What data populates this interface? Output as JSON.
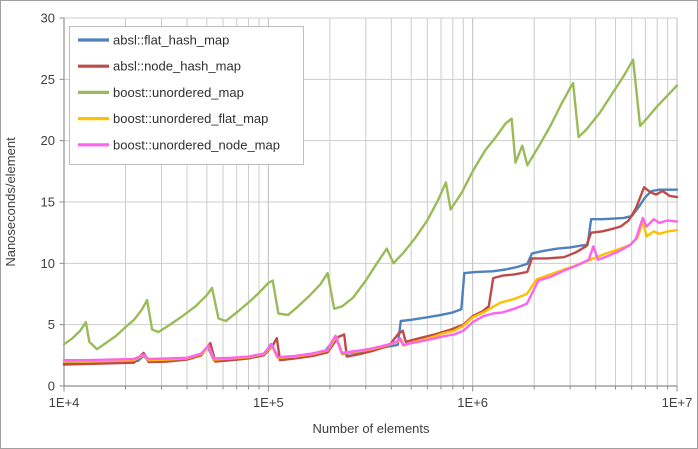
{
  "window": {
    "background": "#ffffff",
    "border_color": "#9f9f9f"
  },
  "chart_data": {
    "type": "line",
    "title": "",
    "x_axis": {
      "label": "Number of elements",
      "scale": "log",
      "min": 10000,
      "max": 10000000,
      "tick_labels": [
        "1E+4",
        "1E+5",
        "1E+6",
        "1E+7"
      ],
      "minor_gridlines": true
    },
    "y_axis": {
      "label": "Nanoseconds/element",
      "min": 0,
      "max": 30,
      "tick_step": 5,
      "tick_labels": [
        "0",
        "5",
        "10",
        "15",
        "20",
        "25",
        "30"
      ]
    },
    "grid": {
      "minor_color": "#cdcdcd",
      "major_color": "#bdbdbd",
      "axis_color": "#8f8f8f"
    },
    "legend": {
      "position": "top-left",
      "border_color": "#bdbdbd",
      "fill": "#ffffff"
    },
    "series": [
      {
        "name": "absl::flat_hash_map",
        "color": "#4F81BD",
        "points": [
          [
            10000,
            1.9
          ],
          [
            12000,
            1.9
          ],
          [
            15000,
            1.95
          ],
          [
            19000,
            2.0
          ],
          [
            23000,
            2.05
          ],
          [
            24500,
            2.45
          ],
          [
            26000,
            2.05
          ],
          [
            31000,
            2.1
          ],
          [
            38000,
            2.2
          ],
          [
            46000,
            2.45
          ],
          [
            50500,
            3.2
          ],
          [
            54000,
            2.1
          ],
          [
            65000,
            2.2
          ],
          [
            80000,
            2.35
          ],
          [
            95000,
            2.55
          ],
          [
            103000,
            3.4
          ],
          [
            112000,
            2.3
          ],
          [
            130000,
            2.4
          ],
          [
            160000,
            2.6
          ],
          [
            190000,
            2.85
          ],
          [
            215000,
            4.0
          ],
          [
            230000,
            2.6
          ],
          [
            270000,
            2.75
          ],
          [
            320000,
            2.95
          ],
          [
            380000,
            3.2
          ],
          [
            430000,
            3.35
          ],
          [
            445000,
            5.3
          ],
          [
            500000,
            5.4
          ],
          [
            600000,
            5.6
          ],
          [
            700000,
            5.8
          ],
          [
            800000,
            6.0
          ],
          [
            880000,
            6.25
          ],
          [
            910000,
            9.2
          ],
          [
            1050000,
            9.3
          ],
          [
            1250000,
            9.35
          ],
          [
            1450000,
            9.5
          ],
          [
            1650000,
            9.7
          ],
          [
            1850000,
            9.95
          ],
          [
            1950000,
            10.8
          ],
          [
            2200000,
            11.0
          ],
          [
            2600000,
            11.2
          ],
          [
            3000000,
            11.3
          ],
          [
            3400000,
            11.45
          ],
          [
            3650000,
            11.5
          ],
          [
            3800000,
            13.6
          ],
          [
            4300000,
            13.6
          ],
          [
            4900000,
            13.65
          ],
          [
            5500000,
            13.7
          ],
          [
            6000000,
            13.85
          ],
          [
            6500000,
            14.6
          ],
          [
            7000000,
            15.4
          ],
          [
            7500000,
            15.9
          ],
          [
            8200000,
            16.0
          ],
          [
            9000000,
            16.0
          ],
          [
            10000000,
            16.0
          ]
        ]
      },
      {
        "name": "absl::node_hash_map",
        "color": "#BE4B48",
        "points": [
          [
            10000,
            1.75
          ],
          [
            13000,
            1.8
          ],
          [
            17000,
            1.85
          ],
          [
            22000,
            1.9
          ],
          [
            24500,
            2.7
          ],
          [
            26000,
            1.95
          ],
          [
            32000,
            2.0
          ],
          [
            40000,
            2.15
          ],
          [
            47000,
            2.5
          ],
          [
            52000,
            3.5
          ],
          [
            55000,
            2.0
          ],
          [
            66000,
            2.1
          ],
          [
            80000,
            2.25
          ],
          [
            95000,
            2.5
          ],
          [
            105000,
            3.3
          ],
          [
            110000,
            3.9
          ],
          [
            114000,
            2.1
          ],
          [
            135000,
            2.25
          ],
          [
            165000,
            2.45
          ],
          [
            195000,
            2.75
          ],
          [
            220000,
            4.0
          ],
          [
            235000,
            4.2
          ],
          [
            242000,
            2.4
          ],
          [
            280000,
            2.6
          ],
          [
            330000,
            2.9
          ],
          [
            390000,
            3.3
          ],
          [
            435000,
            4.3
          ],
          [
            455000,
            4.5
          ],
          [
            470000,
            3.6
          ],
          [
            550000,
            3.9
          ],
          [
            650000,
            4.2
          ],
          [
            780000,
            4.6
          ],
          [
            900000,
            5.0
          ],
          [
            1000000,
            5.7
          ],
          [
            1120000,
            6.1
          ],
          [
            1200000,
            6.5
          ],
          [
            1260000,
            8.8
          ],
          [
            1400000,
            9.0
          ],
          [
            1600000,
            9.1
          ],
          [
            1850000,
            9.3
          ],
          [
            1950000,
            10.4
          ],
          [
            2300000,
            10.4
          ],
          [
            2800000,
            10.5
          ],
          [
            3200000,
            10.9
          ],
          [
            3600000,
            11.4
          ],
          [
            3800000,
            12.5
          ],
          [
            4300000,
            12.6
          ],
          [
            4800000,
            12.8
          ],
          [
            5300000,
            13.0
          ],
          [
            5800000,
            13.5
          ],
          [
            6300000,
            14.5
          ],
          [
            6900000,
            16.2
          ],
          [
            7400000,
            15.8
          ],
          [
            7900000,
            15.6
          ],
          [
            8500000,
            15.9
          ],
          [
            9200000,
            15.5
          ],
          [
            10000000,
            15.4
          ]
        ]
      },
      {
        "name": "boost::unordered_map",
        "color": "#9BBB59",
        "points": [
          [
            10000,
            3.4
          ],
          [
            11000,
            3.9
          ],
          [
            12000,
            4.5
          ],
          [
            12800,
            5.2
          ],
          [
            13300,
            3.6
          ],
          [
            14500,
            3.0
          ],
          [
            16000,
            3.5
          ],
          [
            18000,
            4.1
          ],
          [
            20000,
            4.8
          ],
          [
            22000,
            5.4
          ],
          [
            24000,
            6.2
          ],
          [
            25500,
            7.0
          ],
          [
            27000,
            4.6
          ],
          [
            29000,
            4.4
          ],
          [
            33000,
            5.0
          ],
          [
            38000,
            5.7
          ],
          [
            44000,
            6.5
          ],
          [
            50000,
            7.4
          ],
          [
            53000,
            8.0
          ],
          [
            57000,
            5.5
          ],
          [
            62000,
            5.3
          ],
          [
            70000,
            6.0
          ],
          [
            80000,
            6.8
          ],
          [
            90000,
            7.6
          ],
          [
            100000,
            8.4
          ],
          [
            105000,
            8.6
          ],
          [
            112000,
            5.9
          ],
          [
            125000,
            5.8
          ],
          [
            140000,
            6.5
          ],
          [
            160000,
            7.4
          ],
          [
            180000,
            8.3
          ],
          [
            195000,
            9.2
          ],
          [
            210000,
            6.3
          ],
          [
            230000,
            6.5
          ],
          [
            260000,
            7.2
          ],
          [
            300000,
            8.6
          ],
          [
            340000,
            10.0
          ],
          [
            380000,
            11.2
          ],
          [
            410000,
            10.0
          ],
          [
            460000,
            10.9
          ],
          [
            520000,
            12.0
          ],
          [
            600000,
            13.5
          ],
          [
            680000,
            15.2
          ],
          [
            740000,
            16.6
          ],
          [
            780000,
            14.4
          ],
          [
            880000,
            15.7
          ],
          [
            1000000,
            17.5
          ],
          [
            1150000,
            19.2
          ],
          [
            1300000,
            20.3
          ],
          [
            1450000,
            21.4
          ],
          [
            1550000,
            21.8
          ],
          [
            1620000,
            18.2
          ],
          [
            1750000,
            19.6
          ],
          [
            1850000,
            18.0
          ],
          [
            2100000,
            19.5
          ],
          [
            2400000,
            21.2
          ],
          [
            2700000,
            22.9
          ],
          [
            3000000,
            24.3
          ],
          [
            3100000,
            24.7
          ],
          [
            3300000,
            20.3
          ],
          [
            3600000,
            20.9
          ],
          [
            4200000,
            22.3
          ],
          [
            4800000,
            23.8
          ],
          [
            5500000,
            25.3
          ],
          [
            6100000,
            26.6
          ],
          [
            6600000,
            21.2
          ],
          [
            7200000,
            21.9
          ],
          [
            8000000,
            22.8
          ],
          [
            9000000,
            23.7
          ],
          [
            10000000,
            24.5
          ]
        ]
      },
      {
        "name": "boost::unordered_flat_map",
        "color": "#FFC000",
        "points": [
          [
            10000,
            2.0
          ],
          [
            13000,
            2.0
          ],
          [
            17000,
            2.05
          ],
          [
            22000,
            2.1
          ],
          [
            24500,
            2.5
          ],
          [
            26000,
            2.1
          ],
          [
            32000,
            2.15
          ],
          [
            40000,
            2.25
          ],
          [
            47000,
            2.6
          ],
          [
            51000,
            3.2
          ],
          [
            54000,
            2.15
          ],
          [
            66000,
            2.25
          ],
          [
            80000,
            2.35
          ],
          [
            95000,
            2.6
          ],
          [
            104000,
            3.3
          ],
          [
            111000,
            2.3
          ],
          [
            135000,
            2.4
          ],
          [
            165000,
            2.6
          ],
          [
            195000,
            2.9
          ],
          [
            215000,
            4.0
          ],
          [
            230000,
            2.65
          ],
          [
            270000,
            2.8
          ],
          [
            320000,
            3.0
          ],
          [
            380000,
            3.3
          ],
          [
            430000,
            3.6
          ],
          [
            445000,
            3.85
          ],
          [
            460000,
            3.3
          ],
          [
            520000,
            3.6
          ],
          [
            580000,
            3.8
          ],
          [
            640000,
            4.0
          ],
          [
            720000,
            4.3
          ],
          [
            810000,
            4.5
          ],
          [
            900000,
            4.9
          ],
          [
            1000000,
            5.6
          ],
          [
            1130000,
            6.0
          ],
          [
            1230000,
            6.35
          ],
          [
            1370000,
            6.8
          ],
          [
            1600000,
            7.1
          ],
          [
            1840000,
            7.5
          ],
          [
            2060000,
            8.7
          ],
          [
            2400000,
            9.1
          ],
          [
            2800000,
            9.5
          ],
          [
            3300000,
            9.9
          ],
          [
            3900000,
            10.4
          ],
          [
            4500000,
            10.8
          ],
          [
            5100000,
            11.1
          ],
          [
            5900000,
            11.5
          ],
          [
            6400000,
            12.1
          ],
          [
            6800000,
            13.4
          ],
          [
            7100000,
            12.2
          ],
          [
            7700000,
            12.6
          ],
          [
            8200000,
            12.4
          ],
          [
            9000000,
            12.6
          ],
          [
            10000000,
            12.7
          ]
        ]
      },
      {
        "name": "boost::unordered_node_map",
        "color": "#FF63EE",
        "points": [
          [
            10000,
            2.1
          ],
          [
            13000,
            2.1
          ],
          [
            17000,
            2.15
          ],
          [
            22000,
            2.2
          ],
          [
            24500,
            2.55
          ],
          [
            26000,
            2.2
          ],
          [
            32000,
            2.25
          ],
          [
            40000,
            2.3
          ],
          [
            47000,
            2.65
          ],
          [
            51000,
            3.3
          ],
          [
            54000,
            2.25
          ],
          [
            66000,
            2.3
          ],
          [
            80000,
            2.4
          ],
          [
            95000,
            2.65
          ],
          [
            104000,
            3.4
          ],
          [
            111000,
            2.35
          ],
          [
            135000,
            2.45
          ],
          [
            165000,
            2.65
          ],
          [
            195000,
            2.95
          ],
          [
            213000,
            4.1
          ],
          [
            228000,
            2.7
          ],
          [
            270000,
            2.85
          ],
          [
            320000,
            3.05
          ],
          [
            380000,
            3.35
          ],
          [
            425000,
            3.6
          ],
          [
            440000,
            3.9
          ],
          [
            455000,
            3.35
          ],
          [
            520000,
            3.55
          ],
          [
            580000,
            3.7
          ],
          [
            640000,
            3.85
          ],
          [
            720000,
            4.05
          ],
          [
            810000,
            4.2
          ],
          [
            900000,
            4.5
          ],
          [
            1000000,
            5.2
          ],
          [
            1130000,
            5.7
          ],
          [
            1250000,
            5.9
          ],
          [
            1400000,
            6.0
          ],
          [
            1600000,
            6.3
          ],
          [
            1840000,
            6.7
          ],
          [
            2100000,
            8.6
          ],
          [
            2400000,
            8.9
          ],
          [
            2800000,
            9.4
          ],
          [
            3300000,
            9.9
          ],
          [
            3700000,
            10.3
          ],
          [
            3900000,
            11.4
          ],
          [
            4100000,
            10.3
          ],
          [
            4600000,
            10.6
          ],
          [
            5200000,
            11.0
          ],
          [
            5900000,
            11.5
          ],
          [
            6300000,
            12.0
          ],
          [
            6800000,
            13.7
          ],
          [
            7100000,
            13.0
          ],
          [
            7700000,
            13.6
          ],
          [
            8200000,
            13.3
          ],
          [
            9000000,
            13.5
          ],
          [
            10000000,
            13.4
          ]
        ]
      }
    ]
  }
}
